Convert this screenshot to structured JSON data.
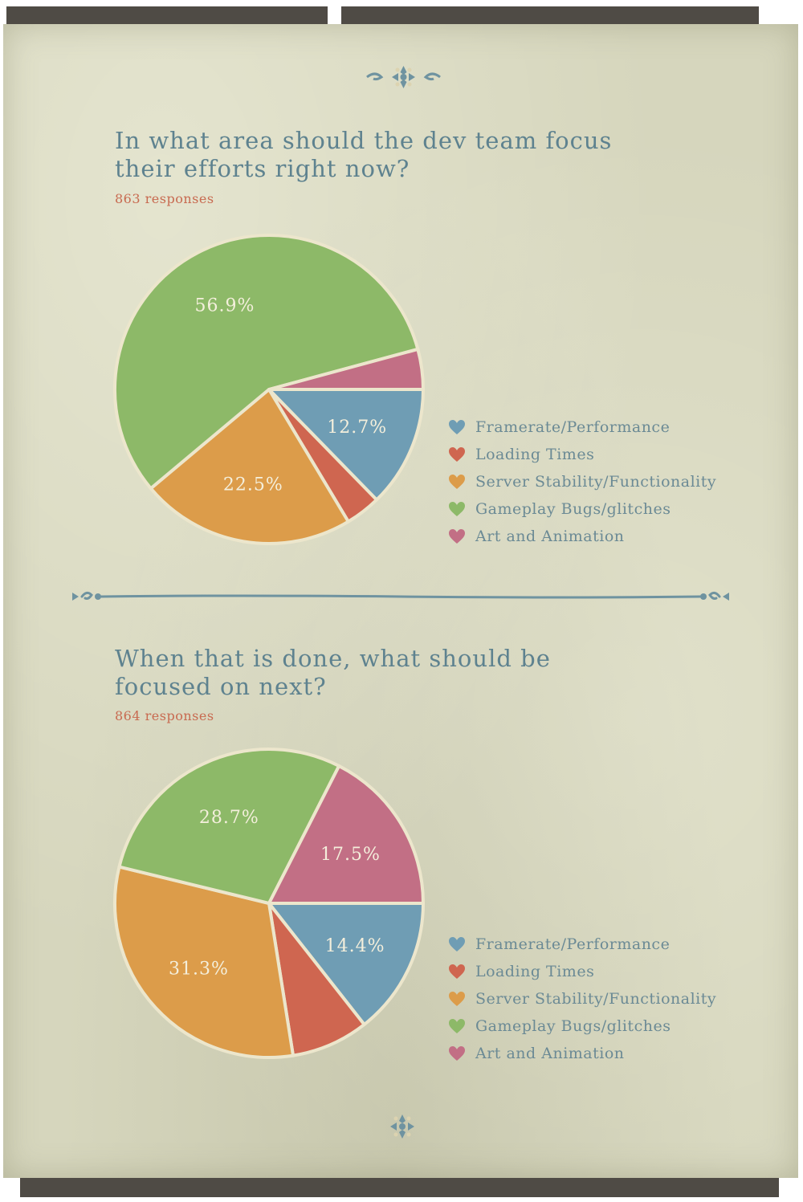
{
  "colors": {
    "Framerate/Performance": "#6f9db4",
    "Loading Times": "#cf6650",
    "Server Stability/Functionality": "#dc9c4a",
    "Gameplay Bugs/glitches": "#8db968",
    "Art and Animation": "#c26f85"
  },
  "chart_data": [
    {
      "type": "pie",
      "title": "In what area should the dev team focus their efforts right now?",
      "subtitle": "863 responses",
      "categories": [
        "Framerate/Performance",
        "Loading Times",
        "Server Stability/Functionality",
        "Gameplay Bugs/glitches",
        "Art and Animation"
      ],
      "values": [
        12.7,
        3.7,
        22.5,
        56.9,
        4.2
      ],
      "data_labels": [
        "12.7%",
        "",
        "22.5%",
        "56.9%",
        ""
      ],
      "legend_position": "right"
    },
    {
      "type": "pie",
      "title": "When that is done, what should be focused on next?",
      "subtitle": "864 responses",
      "categories": [
        "Framerate/Performance",
        "Loading Times",
        "Server Stability/Functionality",
        "Gameplay Bugs/glitches",
        "Art and Animation"
      ],
      "values": [
        14.4,
        8.1,
        31.3,
        28.7,
        17.5
      ],
      "data_labels": [
        "14.4%",
        "",
        "31.3%",
        "28.7%",
        "17.5%"
      ],
      "legend_position": "right"
    }
  ]
}
